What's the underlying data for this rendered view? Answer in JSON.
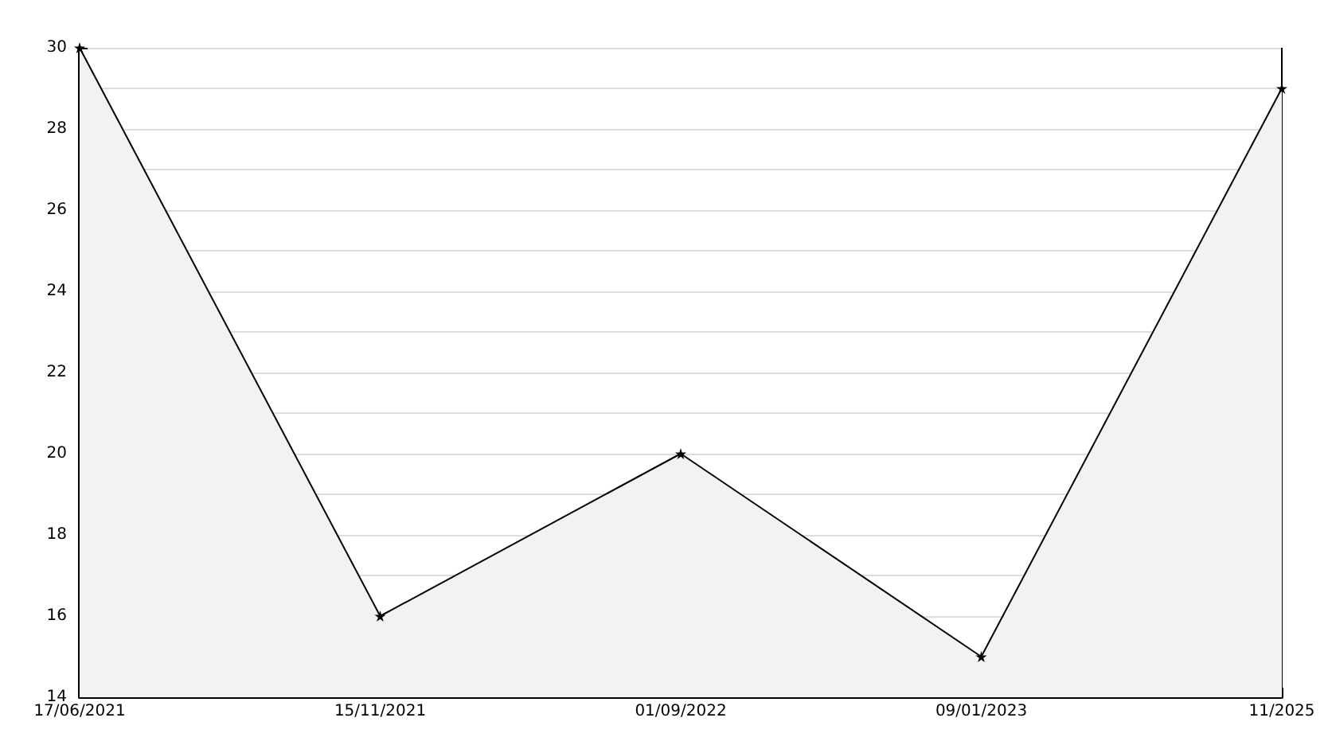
{
  "chart_data": {
    "type": "area",
    "categories": [
      "17/06/2021",
      "15/11/2021",
      "01/09/2022",
      "09/01/2023",
      "11/2025"
    ],
    "series": [
      {
        "color": "#000000",
        "values": [
          30,
          16,
          20,
          15,
          29
        ]
      }
    ],
    "ylim": [
      14,
      30
    ],
    "yticks": [
      14,
      {
        "value": 15,
        "label": null
      },
      16,
      {
        "value": 17,
        "label": null
      },
      18,
      {
        "value": 19,
        "label": null
      },
      20,
      {
        "value": 21,
        "label": null
      },
      22,
      {
        "value": 23,
        "label": null
      },
      24,
      {
        "value": 25,
        "label": null
      },
      26,
      {
        "value": 27,
        "label": null
      },
      28,
      {
        "value": 29,
        "label": null
      },
      30
    ],
    "grid": "y",
    "marker": "star",
    "line_style": "solid"
  }
}
